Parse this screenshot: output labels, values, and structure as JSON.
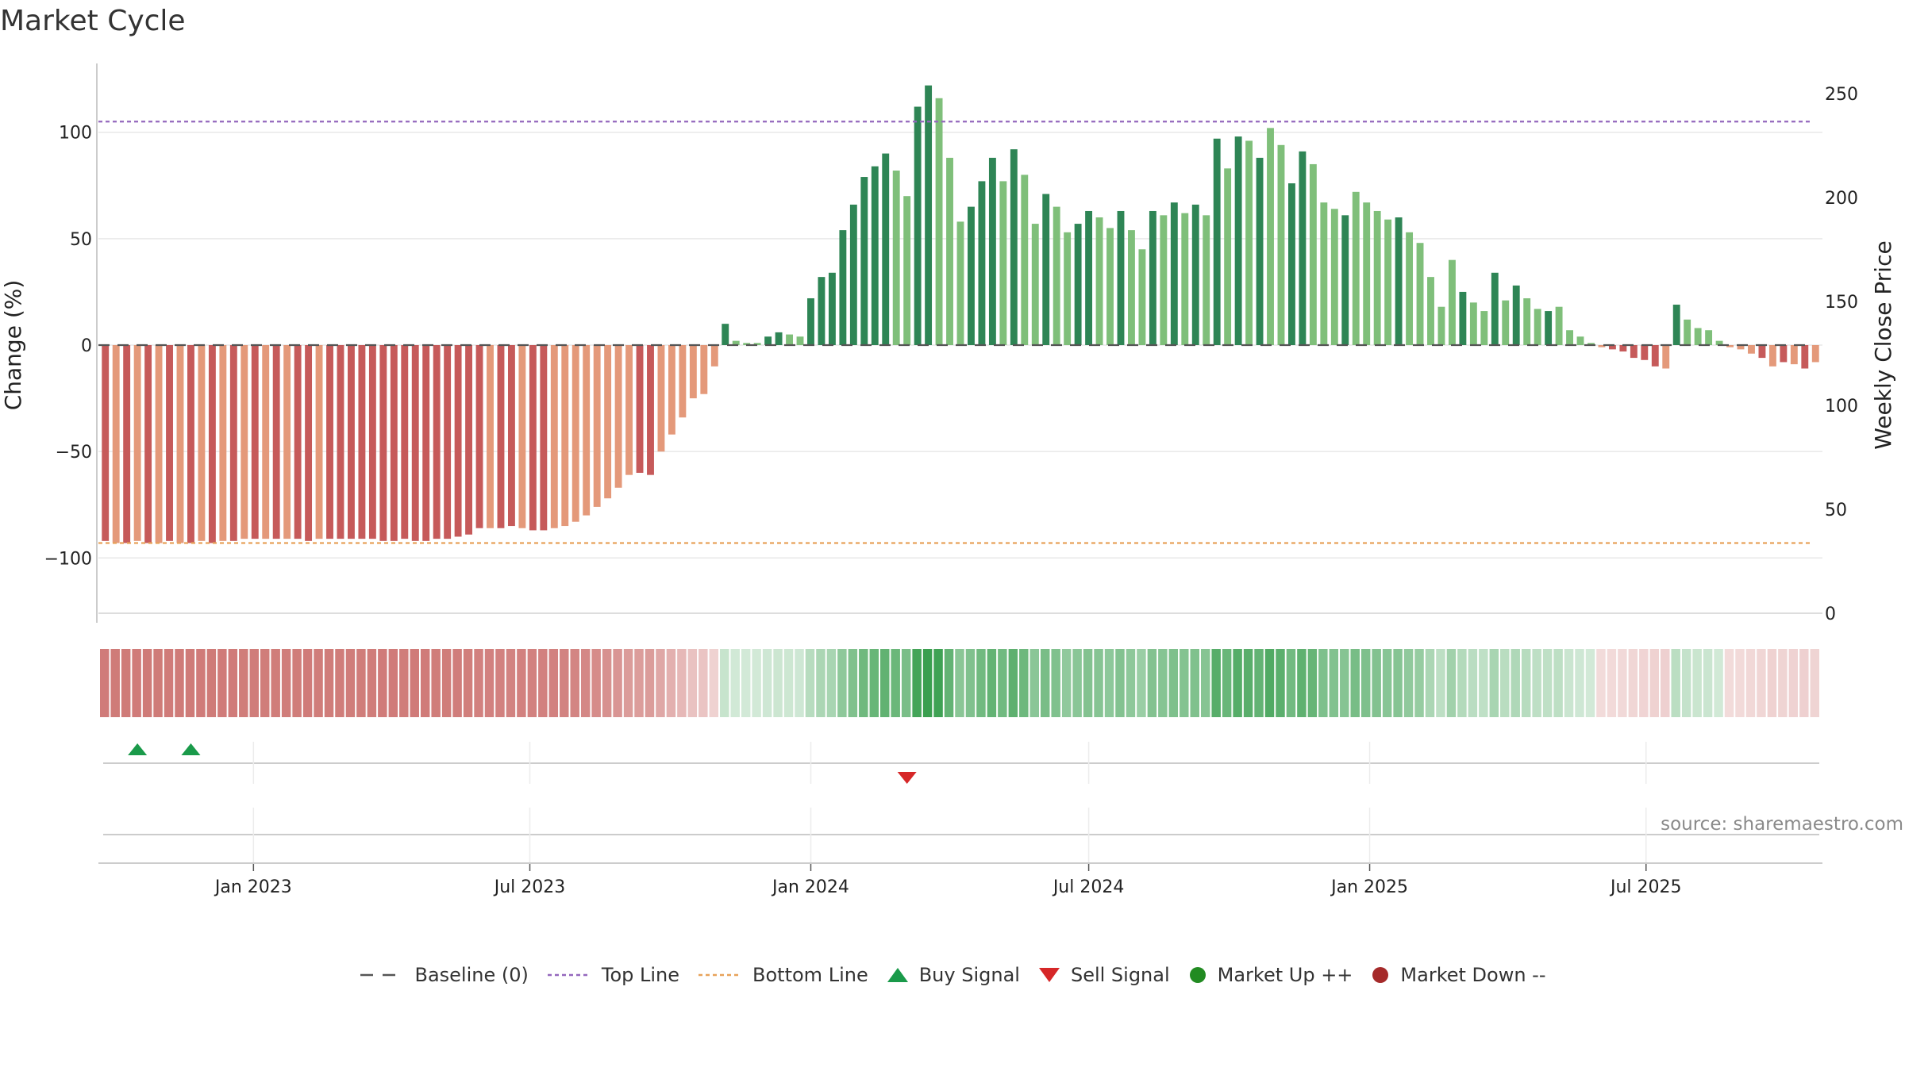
{
  "title": "Market Cycle",
  "source": "source: sharemaestro.com",
  "colors": {
    "dark_green": "#2e8555",
    "light_green": "#7fbf7a",
    "dark_red": "#c65a5a",
    "light_red": "#e4997a",
    "top_line": "#9467bd",
    "bottom_line": "#e8a25a",
    "baseline": "#555555",
    "buy": "#1a9a4a",
    "sell": "#d62728",
    "market_up": "#228b22",
    "market_down": "#a52a2a"
  },
  "legend": [
    {
      "key": "baseline",
      "label": "Baseline (0)"
    },
    {
      "key": "top",
      "label": "Top Line"
    },
    {
      "key": "bottom",
      "label": "Bottom Line"
    },
    {
      "key": "buy",
      "label": "Buy Signal"
    },
    {
      "key": "sell",
      "label": "Sell Signal"
    },
    {
      "key": "up",
      "label": "Market Up ++"
    },
    {
      "key": "down",
      "label": "Market Down --"
    }
  ],
  "chart_data": {
    "type": "bar",
    "title": "Market Cycle",
    "ylabel": "Change (%)",
    "y2label": "Weekly Close Price",
    "ylim": [
      -130,
      130
    ],
    "y2lim": [
      0,
      260
    ],
    "yticks": [
      100,
      50,
      0,
      -50,
      -100
    ],
    "yticks_labels": [
      "100",
      "50",
      "0",
      "−50",
      "−100"
    ],
    "y2ticks": [
      0,
      50,
      100,
      150,
      200,
      250
    ],
    "top_line": 105,
    "bottom_line": -93,
    "baseline": 0,
    "start_date": "2022-09-26",
    "x_ticks": [
      {
        "date": "2023-01-01",
        "label": "Jan 2023"
      },
      {
        "date": "2023-07-01",
        "label": "Jul 2023"
      },
      {
        "date": "2024-01-01",
        "label": "Jan 2024"
      },
      {
        "date": "2024-07-01",
        "label": "Jul 2024"
      },
      {
        "date": "2025-01-01",
        "label": "Jan 2025"
      },
      {
        "date": "2025-07-01",
        "label": "Jul 2025"
      }
    ],
    "values": [
      -92,
      -93,
      -93,
      -92,
      -93,
      -93,
      -92,
      -93,
      -93,
      -92,
      -93,
      -92,
      -92,
      -91,
      -91,
      -91,
      -91,
      -91,
      -91,
      -92,
      -91,
      -91,
      -91,
      -91,
      -91,
      -91,
      -92,
      -92,
      -91,
      -92,
      -92,
      -91,
      -91,
      -90,
      -89,
      -86,
      -86,
      -86,
      -85,
      -86,
      -87,
      -87,
      -86,
      -85,
      -83,
      -80,
      -76,
      -72,
      -67,
      -61,
      -60,
      -61,
      -50,
      -42,
      -34,
      -25,
      -23,
      -10,
      10,
      2,
      1,
      1,
      4,
      6,
      5,
      4,
      22,
      32,
      34,
      54,
      66,
      79,
      84,
      90,
      82,
      70,
      112,
      122,
      116,
      88,
      58,
      65,
      77,
      88,
      77,
      92,
      80,
      57,
      71,
      65,
      53,
      57,
      63,
      60,
      55,
      63,
      54,
      45,
      63,
      61,
      67,
      62,
      66,
      61,
      97,
      83,
      98,
      96,
      88,
      102,
      94,
      76,
      91,
      85,
      67,
      64,
      61,
      72,
      67,
      63,
      59,
      60,
      53,
      48,
      32,
      18,
      40,
      25,
      20,
      16,
      34,
      21,
      28,
      22,
      17,
      16,
      18,
      7,
      4,
      1,
      -1,
      -2,
      -3,
      -6,
      -7,
      -10,
      -11,
      19,
      12,
      8,
      7,
      2,
      -1,
      -2,
      -4,
      -6,
      -10,
      -8,
      -9,
      -11,
      -8
    ],
    "shades": [
      "d",
      "l",
      "d",
      "l",
      "d",
      "l",
      "d",
      "l",
      "d",
      "l",
      "d",
      "l",
      "d",
      "l",
      "d",
      "l",
      "d",
      "l",
      "d",
      "d",
      "l",
      "d",
      "d",
      "d",
      "d",
      "d",
      "d",
      "d",
      "d",
      "d",
      "d",
      "d",
      "d",
      "d",
      "d",
      "d",
      "l",
      "d",
      "d",
      "l",
      "d",
      "d",
      "l",
      "l",
      "l",
      "l",
      "l",
      "l",
      "l",
      "l",
      "d",
      "d",
      "l",
      "l",
      "l",
      "l",
      "l",
      "l",
      "d",
      "l",
      "l",
      "l",
      "d",
      "d",
      "l",
      "l",
      "d",
      "d",
      "d",
      "d",
      "d",
      "d",
      "d",
      "d",
      "l",
      "l",
      "d",
      "d",
      "l",
      "l",
      "l",
      "d",
      "d",
      "d",
      "l",
      "d",
      "l",
      "l",
      "d",
      "l",
      "l",
      "d",
      "d",
      "l",
      "l",
      "d",
      "l",
      "l",
      "d",
      "l",
      "d",
      "l",
      "d",
      "l",
      "d",
      "l",
      "d",
      "l",
      "d",
      "l",
      "l",
      "d",
      "d",
      "l",
      "l",
      "l",
      "d",
      "l",
      "l",
      "l",
      "l",
      "d",
      "l",
      "l",
      "l",
      "l",
      "l",
      "d",
      "l",
      "l",
      "d",
      "l",
      "d",
      "l",
      "l",
      "d",
      "l",
      "l",
      "l",
      "l",
      "l",
      "d",
      "d",
      "d",
      "d",
      "d",
      "l",
      "d",
      "l",
      "l",
      "l",
      "l",
      "l",
      "l",
      "l",
      "d",
      "l",
      "d",
      "l",
      "d",
      "l"
    ],
    "buy_signals": [
      3,
      8
    ],
    "sell_signals": [
      75
    ]
  }
}
